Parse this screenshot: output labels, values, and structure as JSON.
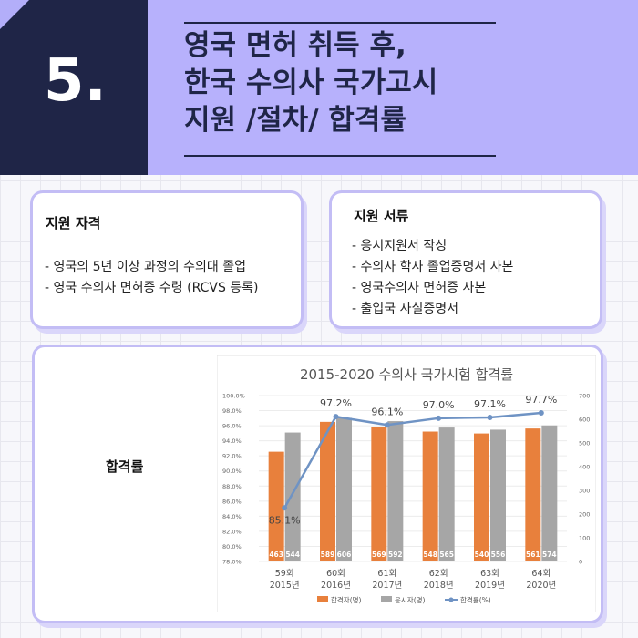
{
  "header": {
    "number": "5.",
    "title_lines": [
      "영국 면허 취득 후,",
      "한국 수의사 국가고시",
      "지원 /절차/ 합격률"
    ]
  },
  "qualification": {
    "title": "지원 자격",
    "items": [
      "- 영국의 5년 이상 과정의 수의대 졸업",
      "- 영국 수의사 면허증 수령 (RCVS 등록)"
    ]
  },
  "documents": {
    "title": "지원 서류",
    "items": [
      "- 응시지원서 작성",
      "- 수의사 학사 졸업증명서 사본",
      "- 영국수의사 면허증 사본",
      "- 출입국 사실증명서"
    ]
  },
  "chart_section": {
    "label": "합격률"
  },
  "chart_data": {
    "type": "bar",
    "title": "2015-2020 수의사 국가시험 합격률",
    "categories": [
      [
        "59회",
        "2015년"
      ],
      [
        "60회",
        "2016년"
      ],
      [
        "61회",
        "2017년"
      ],
      [
        "62회",
        "2018년"
      ],
      [
        "63회",
        "2019년"
      ],
      [
        "64회",
        "2020년"
      ]
    ],
    "series": [
      {
        "name": "합격자(명)",
        "type": "bar",
        "axis": "right",
        "color": "#e8803c",
        "values": [
          463,
          589,
          569,
          548,
          540,
          561
        ]
      },
      {
        "name": "응시자(명)",
        "type": "bar",
        "axis": "right",
        "color": "#a6a6a6",
        "values": [
          544,
          606,
          592,
          565,
          556,
          574
        ]
      },
      {
        "name": "합격률(%)",
        "type": "line",
        "axis": "left",
        "color": "#6f93c4",
        "values": [
          85.1,
          97.2,
          96.1,
          97.0,
          97.1,
          97.7
        ],
        "labels": [
          "85.1%",
          "97.2%",
          "96.1%",
          "97.0%",
          "97.1%",
          "97.7%"
        ]
      }
    ],
    "left_axis": {
      "ylim": [
        78.0,
        100.0
      ],
      "ticks": [
        "100.0%",
        "98.0%",
        "96.0%",
        "94.0%",
        "92.0%",
        "90.0%",
        "88.0%",
        "86.0%",
        "84.0%",
        "82.0%",
        "80.0%",
        "78.0%"
      ]
    },
    "right_axis": {
      "ylim": [
        0,
        700
      ],
      "ticks": [
        "700",
        "600",
        "500",
        "400",
        "300",
        "200",
        "100",
        "0"
      ]
    },
    "grid": true,
    "legend_position": "bottom"
  }
}
